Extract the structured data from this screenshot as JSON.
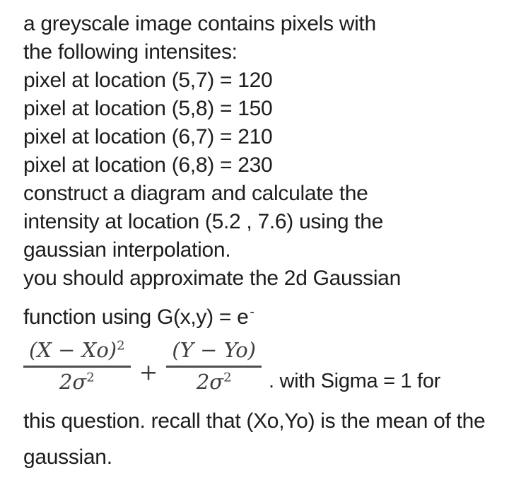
{
  "page": {
    "background": "#ffffff",
    "text_color": "#1d1d1d",
    "formula_color": "#3e3e3e"
  },
  "question": {
    "lines": [
      "a greyscale image contains pixels with",
      "the following intensites:",
      "pixel at location (5,7) = 120",
      "pixel at location (5,8) = 150",
      "pixel at location (6,7) = 210",
      "pixel at location (6,8) = 230",
      "construct a diagram and calculate the",
      "intensity at location (5.2 , 7.6) using the",
      "gaussian interpolation.",
      "you should approximate the 2d Gaussian"
    ],
    "exp_line": {
      "text": "function using G(x,y) = e",
      "exponent": "-"
    },
    "formula": {
      "frac1": {
        "num": "(X − Xo)",
        "num_sup": "2",
        "den": "2σ",
        "den_sup": "2"
      },
      "operator": "+",
      "frac2": {
        "num": "(Y − Yo)",
        "den": "2σ",
        "den_sup": "2"
      },
      "suffix": ". with Sigma = 1 for"
    },
    "closing_lines": [
      "this question. recall that (Xo,Yo) is the mean of the",
      "gaussian."
    ]
  }
}
